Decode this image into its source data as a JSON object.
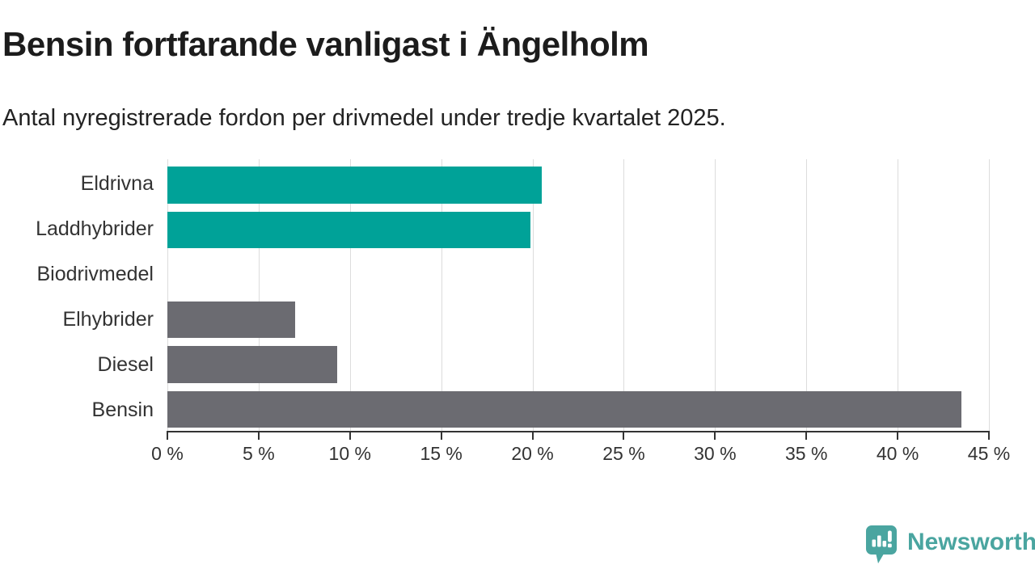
{
  "title": "Bensin fortfarande vanligast i Ängelholm",
  "subtitle": "Antal nyregistrerade fordon per drivmedel under tredje kvartalet 2025.",
  "chart_data": {
    "type": "bar",
    "orientation": "horizontal",
    "title": "Bensin fortfarande vanligast i Ängelholm",
    "subtitle": "Antal nyregistrerade fordon per drivmedel under tredje kvartalet 2025.",
    "categories": [
      "Eldrivna",
      "Laddhybrider",
      "Biodrivmedel",
      "Elhybrider",
      "Diesel",
      "Bensin"
    ],
    "values": [
      20.5,
      19.9,
      0,
      7.0,
      9.3,
      43.5
    ],
    "unit": "%",
    "bar_colors": [
      "#00a298",
      "#00a298",
      "#6b6b71",
      "#6b6b71",
      "#6b6b71",
      "#6b6b71"
    ],
    "xlabel": "",
    "ylabel": "",
    "xlim": [
      0,
      45
    ],
    "xticks": [
      0,
      5,
      10,
      15,
      20,
      25,
      30,
      35,
      40,
      45
    ],
    "xtick_labels": [
      "0 %",
      "5 %",
      "10 %",
      "15 %",
      "20 %",
      "25 %",
      "30 %",
      "35 %",
      "40 %",
      "45 %"
    ],
    "grid": "vertical-only",
    "legend": "none"
  },
  "colors": {
    "highlight_teal": "#00a298",
    "neutral_gray": "#6b6b71",
    "gridline": "#dcdcdc",
    "axis": "#333333",
    "title_text": "#1c1c1c",
    "brand_teal": "#4aa5a0",
    "background": "#ffffff"
  },
  "footer": {
    "brand": "Newsworthy",
    "logo_icon": "newsworthy-speech-bubble-chart-icon"
  }
}
